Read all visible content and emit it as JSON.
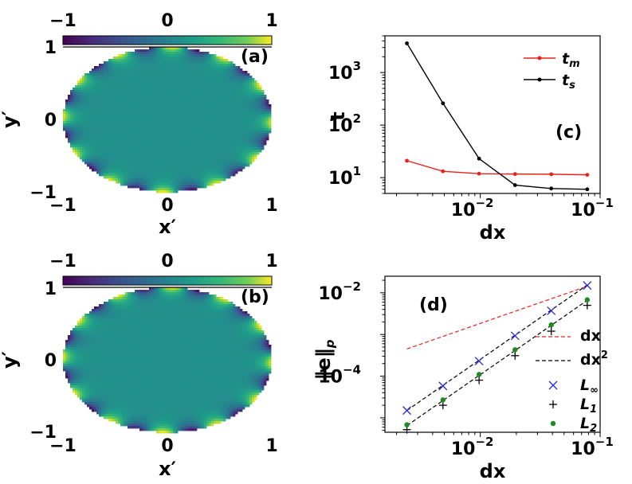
{
  "chart_data": [
    {
      "id": "a",
      "type": "heatmap",
      "panel_label": "(a)",
      "xlabel": "x′",
      "ylabel": "y′",
      "xlim": [
        -1,
        1
      ],
      "ylim": [
        -1,
        1
      ],
      "x_ticks": [
        "−1",
        "0",
        "1"
      ],
      "y_ticks": [
        "−1",
        "0",
        "1"
      ],
      "colorbar": {
        "range": [
          -1,
          1
        ],
        "ticks": [
          "−1",
          "0",
          "1"
        ],
        "colormap": "viridis",
        "location": "top"
      },
      "domain": "ellipse",
      "boundary_lobes": 12,
      "lobe_offset": 0.5
    },
    {
      "id": "b",
      "type": "heatmap",
      "panel_label": "(b)",
      "xlabel": "x′",
      "ylabel": "y′",
      "xlim": [
        -1,
        1
      ],
      "ylim": [
        -1,
        1
      ],
      "x_ticks": [
        "−1",
        "0",
        "1"
      ],
      "y_ticks": [
        "−1",
        "0",
        "1"
      ],
      "colorbar": {
        "range": [
          -1,
          1
        ],
        "ticks": [
          "−1",
          "0",
          "1"
        ],
        "colormap": "viridis",
        "location": "top"
      },
      "domain": "ellipse",
      "boundary_lobes": 12,
      "lobe_offset": 0.5
    },
    {
      "id": "c",
      "type": "line",
      "panel_label": "(c)",
      "xlabel": "dx",
      "ylabel": "t",
      "xscale": "log",
      "yscale": "log",
      "xlim": [
        0.0016,
        0.1
      ],
      "ylim": [
        5,
        5000
      ],
      "x_ticks": [
        {
          "value": 0.01,
          "base": "10",
          "exp": "−2"
        },
        {
          "value": 0.1,
          "base": "10",
          "exp": "−1"
        }
      ],
      "y_ticks": [
        {
          "value": 10,
          "base": "10",
          "exp": "1"
        },
        {
          "value": 100,
          "base": "10",
          "exp": "2"
        },
        {
          "value": 1000,
          "base": "10",
          "exp": "3"
        }
      ],
      "x": [
        0.00244,
        0.00488,
        0.00977,
        0.0195,
        0.0391,
        0.0781
      ],
      "series": [
        {
          "name": "t",
          "sub": "m",
          "color": "#e8221b",
          "values": [
            21,
            13.2,
            11.9,
            11.7,
            11.6,
            11.3
          ]
        },
        {
          "name": "t",
          "sub": "s",
          "color": "#000000",
          "values": [
            3600,
            260,
            23,
            7.2,
            6.2,
            6.0
          ]
        }
      ],
      "legend": "top-right"
    },
    {
      "id": "d",
      "type": "scatter",
      "panel_label": "(d)",
      "xlabel": "dx",
      "ylabel": "‖e‖",
      "ylabel_sub": "p",
      "xscale": "log",
      "yscale": "log",
      "xlim": [
        0.0016,
        0.1
      ],
      "ylim": [
        4.5e-06,
        0.025
      ],
      "x_ticks": [
        {
          "value": 0.01,
          "base": "10",
          "exp": "−2"
        },
        {
          "value": 0.1,
          "base": "10",
          "exp": "−1"
        }
      ],
      "y_ticks": [
        {
          "value": 0.0001,
          "base": "10",
          "exp": "−4"
        },
        {
          "value": 0.01,
          "base": "10",
          "exp": "−2"
        }
      ],
      "x": [
        0.00244,
        0.00488,
        0.00977,
        0.0195,
        0.0391,
        0.0781
      ],
      "reference_lines": [
        {
          "name": "dx",
          "color": "#e8221b",
          "x": [
            0.00244,
            0.0781
          ],
          "values": [
            0.00045,
            0.0144
          ]
        },
        {
          "name": "dx",
          "sup": "2",
          "color": "#000000",
          "x": [
            0.00244,
            0.0781
          ],
          "values": [
            1.5e-05,
            0.0154
          ]
        },
        {
          "name": "dx",
          "sup": "2",
          "color": "#000000",
          "x": [
            0.00244,
            0.0781
          ],
          "values": [
            6.5e-06,
            0.0066
          ]
        }
      ],
      "series": [
        {
          "name": "L",
          "sub": "∞",
          "marker": "x",
          "color": "#2b2bd6",
          "values": [
            1.5e-05,
            5.8e-05,
            0.00023,
            0.00093,
            0.0037,
            0.015
          ]
        },
        {
          "name": "L",
          "sub": "1",
          "marker": "+",
          "color": "#000000",
          "values": [
            5.2e-06,
            2e-05,
            8e-05,
            0.00031,
            0.0012,
            0.005
          ]
        },
        {
          "name": "L",
          "sub": "2",
          "marker": "o",
          "color": "#1f8a1f",
          "values": [
            6.8e-06,
            2.7e-05,
            0.00011,
            0.00043,
            0.0017,
            0.0068
          ]
        }
      ],
      "legend": "right"
    }
  ]
}
